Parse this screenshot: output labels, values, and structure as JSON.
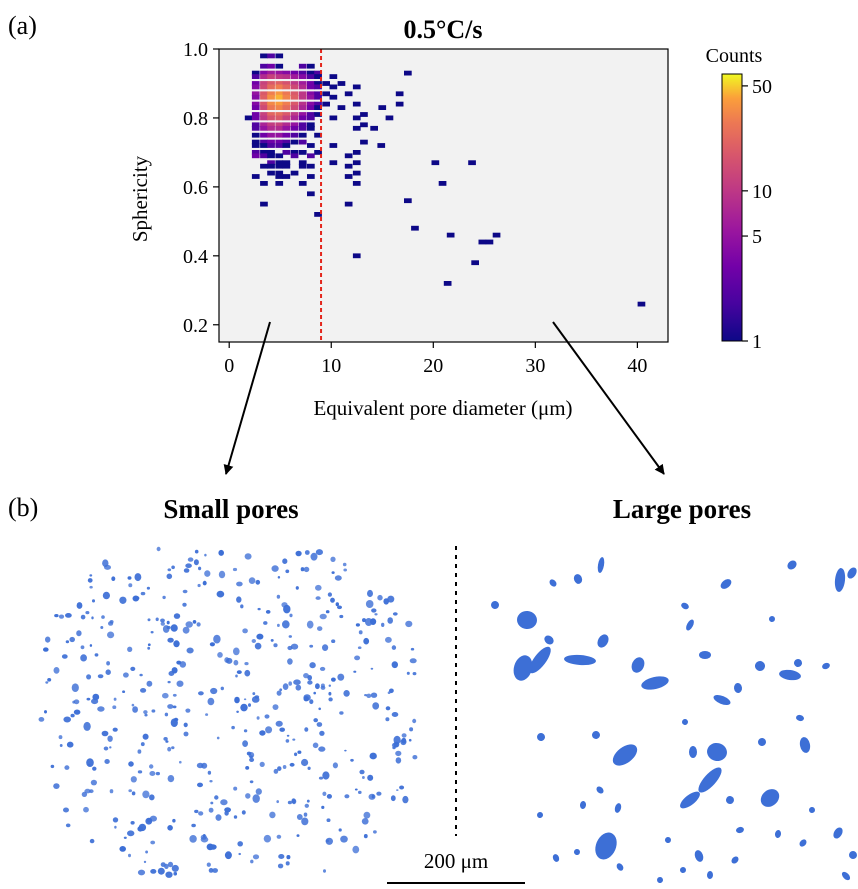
{
  "panel_a": {
    "label": "(a)"
  },
  "panel_b": {
    "label": "(b)",
    "left_title": "Small pores",
    "right_title": "Large pores",
    "scalebar_label": "200 μm",
    "pore_color": "#3d6fd6"
  },
  "colorbar": {
    "label": "Counts",
    "scale": "log",
    "range": [
      1,
      60
    ],
    "ticks": [
      1,
      5,
      10,
      50
    ],
    "tick_labels": [
      "1",
      "5",
      "10",
      "50"
    ],
    "colormap": "plasma"
  },
  "chart_data": {
    "type": "heatmap",
    "title": "0.5°C/s",
    "xlabel": "Equivalent pore diameter (μm)",
    "ylabel": "Sphericity",
    "xlim": [
      -1,
      43
    ],
    "ylim": [
      0.15,
      1.0
    ],
    "x_ticks": [
      0,
      10,
      20,
      30,
      40
    ],
    "y_ticks": [
      0.2,
      0.4,
      0.6,
      0.8,
      1.0
    ],
    "y_tick_labels": [
      "0.2",
      "0.4",
      "0.6",
      "0.8",
      "1.0"
    ],
    "grid": false,
    "background_color": "#f2f2f2",
    "bin_width_x": 0.75,
    "bin_height_y": 0.014,
    "threshold_line": {
      "x": 9,
      "color": "#e3261c",
      "style": "dashed"
    },
    "notes": "2D histogram; cells are [x_center, y_center, count]",
    "cells": [
      [
        3.4,
        0.98,
        1
      ],
      [
        4.1,
        0.98,
        2
      ],
      [
        4.9,
        0.98,
        1
      ],
      [
        3.4,
        0.95,
        2
      ],
      [
        4.1,
        0.95,
        3
      ],
      [
        4.9,
        0.95,
        1
      ],
      [
        7.2,
        0.95,
        2
      ],
      [
        8.0,
        0.95,
        1
      ],
      [
        2.6,
        0.93,
        1
      ],
      [
        3.4,
        0.93,
        4
      ],
      [
        4.1,
        0.93,
        6
      ],
      [
        4.9,
        0.93,
        5
      ],
      [
        5.6,
        0.93,
        4
      ],
      [
        6.4,
        0.93,
        3
      ],
      [
        7.2,
        0.93,
        2
      ],
      [
        8.0,
        0.93,
        1
      ],
      [
        8.7,
        0.93,
        2
      ],
      [
        17.5,
        0.93,
        1
      ],
      [
        2.6,
        0.92,
        2
      ],
      [
        3.4,
        0.92,
        8
      ],
      [
        4.1,
        0.92,
        12
      ],
      [
        4.9,
        0.92,
        10
      ],
      [
        5.6,
        0.92,
        9
      ],
      [
        6.4,
        0.92,
        6
      ],
      [
        7.2,
        0.92,
        4
      ],
      [
        8.0,
        0.92,
        2
      ],
      [
        8.7,
        0.92,
        1
      ],
      [
        10.2,
        0.92,
        1
      ],
      [
        2.6,
        0.9,
        3
      ],
      [
        3.4,
        0.9,
        12
      ],
      [
        4.1,
        0.9,
        18
      ],
      [
        4.9,
        0.9,
        20
      ],
      [
        5.6,
        0.9,
        16
      ],
      [
        6.4,
        0.9,
        10
      ],
      [
        7.2,
        0.9,
        6
      ],
      [
        8.0,
        0.9,
        3
      ],
      [
        8.7,
        0.9,
        1
      ],
      [
        9.5,
        0.9,
        1
      ],
      [
        11.0,
        0.9,
        1
      ],
      [
        2.6,
        0.89,
        4
      ],
      [
        3.4,
        0.89,
        14
      ],
      [
        4.1,
        0.89,
        24
      ],
      [
        4.9,
        0.89,
        30
      ],
      [
        5.6,
        0.89,
        22
      ],
      [
        6.4,
        0.89,
        14
      ],
      [
        7.2,
        0.89,
        8
      ],
      [
        8.0,
        0.89,
        3
      ],
      [
        8.7,
        0.89,
        2
      ],
      [
        10.2,
        0.89,
        1
      ],
      [
        12.5,
        0.89,
        1
      ],
      [
        2.6,
        0.87,
        5
      ],
      [
        3.4,
        0.87,
        18
      ],
      [
        4.1,
        0.87,
        30
      ],
      [
        4.9,
        0.87,
        38
      ],
      [
        5.6,
        0.87,
        28
      ],
      [
        6.4,
        0.87,
        18
      ],
      [
        7.2,
        0.87,
        10
      ],
      [
        8.0,
        0.87,
        4
      ],
      [
        8.7,
        0.87,
        2
      ],
      [
        9.5,
        0.87,
        1
      ],
      [
        11.7,
        0.87,
        1
      ],
      [
        16.7,
        0.87,
        1
      ],
      [
        2.6,
        0.86,
        4
      ],
      [
        3.4,
        0.86,
        20
      ],
      [
        4.1,
        0.86,
        36
      ],
      [
        4.9,
        0.86,
        45
      ],
      [
        5.6,
        0.86,
        32
      ],
      [
        6.4,
        0.86,
        20
      ],
      [
        7.2,
        0.86,
        10
      ],
      [
        8.0,
        0.86,
        5
      ],
      [
        8.7,
        0.86,
        2
      ],
      [
        10.2,
        0.86,
        1
      ],
      [
        2.6,
        0.84,
        4
      ],
      [
        3.4,
        0.84,
        18
      ],
      [
        4.1,
        0.84,
        34
      ],
      [
        4.9,
        0.84,
        40
      ],
      [
        5.6,
        0.84,
        30
      ],
      [
        6.4,
        0.84,
        18
      ],
      [
        7.2,
        0.84,
        9
      ],
      [
        8.0,
        0.84,
        4
      ],
      [
        8.7,
        0.84,
        2
      ],
      [
        9.5,
        0.84,
        1
      ],
      [
        12.5,
        0.84,
        1
      ],
      [
        16.7,
        0.84,
        1
      ],
      [
        2.6,
        0.83,
        3
      ],
      [
        3.4,
        0.83,
        14
      ],
      [
        4.1,
        0.83,
        28
      ],
      [
        4.9,
        0.83,
        32
      ],
      [
        5.6,
        0.83,
        24
      ],
      [
        6.4,
        0.83,
        14
      ],
      [
        7.2,
        0.83,
        7
      ],
      [
        8.0,
        0.83,
        3
      ],
      [
        8.7,
        0.83,
        1
      ],
      [
        11.0,
        0.83,
        1
      ],
      [
        15.0,
        0.83,
        1
      ],
      [
        2.6,
        0.81,
        3
      ],
      [
        3.4,
        0.81,
        12
      ],
      [
        4.1,
        0.81,
        22
      ],
      [
        4.9,
        0.81,
        24
      ],
      [
        5.6,
        0.81,
        18
      ],
      [
        6.4,
        0.81,
        10
      ],
      [
        7.2,
        0.81,
        5
      ],
      [
        8.0,
        0.81,
        2
      ],
      [
        8.7,
        0.81,
        1
      ],
      [
        13.2,
        0.81,
        1
      ],
      [
        1.9,
        0.8,
        1
      ],
      [
        2.6,
        0.8,
        3
      ],
      [
        3.4,
        0.8,
        10
      ],
      [
        4.1,
        0.8,
        16
      ],
      [
        4.9,
        0.8,
        18
      ],
      [
        5.6,
        0.8,
        12
      ],
      [
        6.4,
        0.8,
        7
      ],
      [
        7.2,
        0.8,
        3
      ],
      [
        8.0,
        0.8,
        2
      ],
      [
        10.2,
        0.8,
        1
      ],
      [
        12.5,
        0.8,
        1
      ],
      [
        15.7,
        0.8,
        1
      ],
      [
        2.6,
        0.78,
        2
      ],
      [
        3.4,
        0.78,
        7
      ],
      [
        4.1,
        0.78,
        11
      ],
      [
        4.9,
        0.78,
        12
      ],
      [
        5.6,
        0.78,
        8
      ],
      [
        6.4,
        0.78,
        5
      ],
      [
        7.2,
        0.78,
        2
      ],
      [
        8.0,
        0.78,
        1
      ],
      [
        13.2,
        0.78,
        1
      ],
      [
        2.6,
        0.77,
        2
      ],
      [
        3.4,
        0.77,
        5
      ],
      [
        4.1,
        0.77,
        8
      ],
      [
        4.9,
        0.77,
        8
      ],
      [
        5.6,
        0.77,
        5
      ],
      [
        6.4,
        0.77,
        3
      ],
      [
        7.2,
        0.77,
        2
      ],
      [
        8.0,
        0.77,
        1
      ],
      [
        12.5,
        0.77,
        1
      ],
      [
        14.2,
        0.77,
        1
      ],
      [
        2.6,
        0.75,
        1
      ],
      [
        3.4,
        0.75,
        3
      ],
      [
        4.1,
        0.75,
        5
      ],
      [
        4.9,
        0.75,
        5
      ],
      [
        5.6,
        0.75,
        3
      ],
      [
        6.4,
        0.75,
        2
      ],
      [
        7.2,
        0.75,
        1
      ],
      [
        8.7,
        0.75,
        1
      ],
      [
        2.6,
        0.73,
        1
      ],
      [
        3.4,
        0.73,
        2
      ],
      [
        4.1,
        0.73,
        3
      ],
      [
        4.9,
        0.73,
        3
      ],
      [
        5.6,
        0.73,
        2
      ],
      [
        6.4,
        0.73,
        1
      ],
      [
        7.2,
        0.73,
        2
      ],
      [
        13.2,
        0.73,
        1
      ],
      [
        2.6,
        0.72,
        1
      ],
      [
        3.4,
        0.72,
        1
      ],
      [
        4.1,
        0.72,
        2
      ],
      [
        4.9,
        0.72,
        2
      ],
      [
        5.6,
        0.72,
        1
      ],
      [
        8.0,
        0.72,
        1
      ],
      [
        10.2,
        0.72,
        1
      ],
      [
        14.9,
        0.72,
        1
      ],
      [
        2.6,
        0.7,
        2
      ],
      [
        3.4,
        0.7,
        1
      ],
      [
        4.1,
        0.7,
        1
      ],
      [
        5.6,
        0.7,
        2
      ],
      [
        6.4,
        0.7,
        1
      ],
      [
        7.2,
        0.7,
        1
      ],
      [
        8.7,
        0.7,
        1
      ],
      [
        12.5,
        0.7,
        1
      ],
      [
        2.6,
        0.69,
        3
      ],
      [
        3.4,
        0.69,
        2
      ],
      [
        4.1,
        0.69,
        1
      ],
      [
        4.9,
        0.69,
        1
      ],
      [
        6.4,
        0.69,
        2
      ],
      [
        8.0,
        0.69,
        2
      ],
      [
        11.7,
        0.69,
        1
      ],
      [
        4.1,
        0.67,
        2
      ],
      [
        4.9,
        0.67,
        1
      ],
      [
        5.6,
        0.67,
        1
      ],
      [
        7.2,
        0.67,
        1
      ],
      [
        10.2,
        0.67,
        1
      ],
      [
        12.5,
        0.67,
        1
      ],
      [
        20.2,
        0.67,
        1
      ],
      [
        23.8,
        0.67,
        1
      ],
      [
        3.4,
        0.66,
        1
      ],
      [
        4.1,
        0.66,
        1
      ],
      [
        4.9,
        0.66,
        1
      ],
      [
        5.6,
        0.66,
        1
      ],
      [
        7.2,
        0.66,
        1
      ],
      [
        8.0,
        0.66,
        1
      ],
      [
        11.7,
        0.66,
        1
      ],
      [
        4.1,
        0.64,
        1
      ],
      [
        4.9,
        0.64,
        1
      ],
      [
        6.4,
        0.64,
        1
      ],
      [
        12.5,
        0.64,
        1
      ],
      [
        2.6,
        0.63,
        1
      ],
      [
        4.9,
        0.63,
        1
      ],
      [
        5.6,
        0.63,
        1
      ],
      [
        8.0,
        0.63,
        1
      ],
      [
        11.7,
        0.63,
        1
      ],
      [
        3.4,
        0.61,
        1
      ],
      [
        4.9,
        0.61,
        1
      ],
      [
        7.2,
        0.61,
        1
      ],
      [
        12.5,
        0.61,
        1
      ],
      [
        20.9,
        0.61,
        1
      ],
      [
        8.0,
        0.58,
        1
      ],
      [
        17.5,
        0.56,
        1
      ],
      [
        3.4,
        0.55,
        1
      ],
      [
        11.7,
        0.55,
        1
      ],
      [
        8.7,
        0.52,
        1
      ],
      [
        18.2,
        0.48,
        1
      ],
      [
        21.7,
        0.46,
        1
      ],
      [
        26.2,
        0.46,
        1
      ],
      [
        25.5,
        0.44,
        1
      ],
      [
        24.8,
        0.44,
        1
      ],
      [
        12.5,
        0.4,
        1
      ],
      [
        24.1,
        0.38,
        1
      ],
      [
        21.4,
        0.32,
        1
      ],
      [
        40.4,
        0.26,
        1
      ]
    ]
  }
}
